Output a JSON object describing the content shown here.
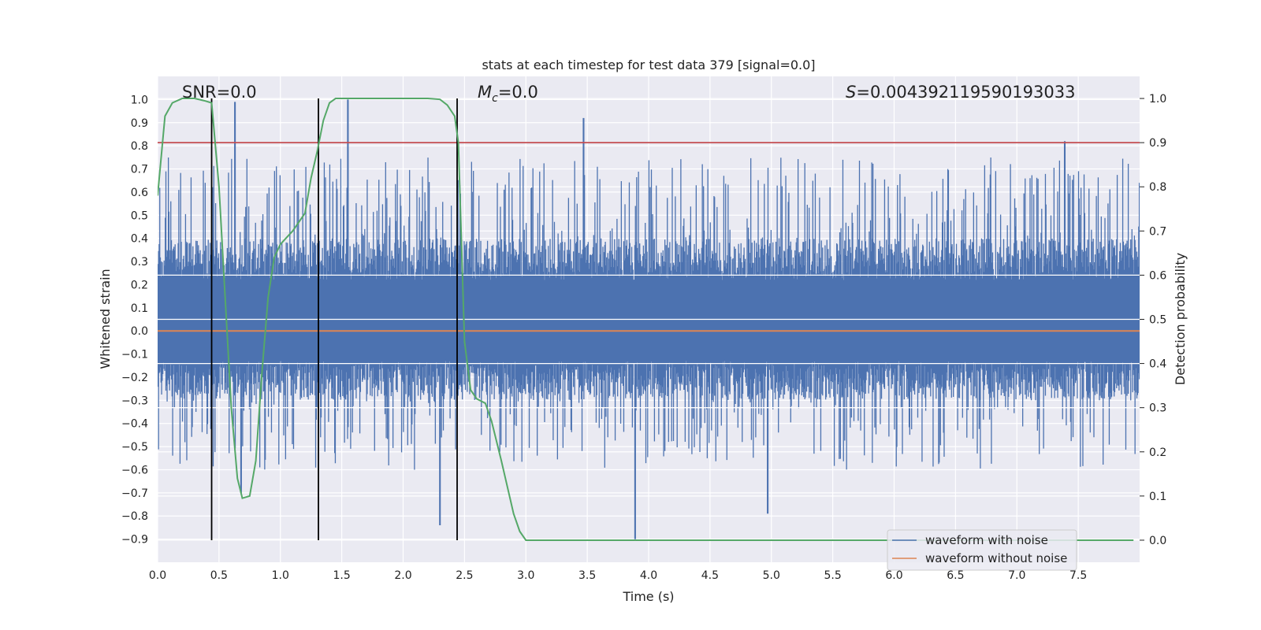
{
  "chart_data": {
    "type": "line",
    "title": "stats at each timestep for test data 379 [signal=0.0]",
    "xlabel": "Time (s)",
    "ylabel": "Whitened strain",
    "y2label": "Detection probability",
    "xlim": [
      0.0,
      8.0
    ],
    "ylim": [
      -1.0,
      1.1
    ],
    "y2lim": [
      -0.05,
      1.05
    ],
    "grid": true,
    "xticks": [
      "0.0",
      "0.5",
      "1.0",
      "1.5",
      "2.0",
      "2.5",
      "3.0",
      "3.5",
      "4.0",
      "4.5",
      "5.0",
      "5.5",
      "6.0",
      "6.5",
      "7.0",
      "7.5"
    ],
    "yticks": [
      "1.0",
      "0.9",
      "0.8",
      "0.7",
      "0.6",
      "0.5",
      "0.4",
      "0.3",
      "0.2",
      "0.1",
      "0.0",
      "−0.1",
      "−0.2",
      "−0.3",
      "−0.4",
      "−0.5",
      "−0.6",
      "−0.7",
      "−0.8",
      "−0.9"
    ],
    "y2ticks": [
      "1.0",
      "0.9",
      "0.8",
      "0.7",
      "0.6",
      "0.5",
      "0.4",
      "0.3",
      "0.2",
      "0.1",
      "0.0"
    ],
    "annotations": {
      "snr": "SNR=0.0",
      "mc_symbol": "M",
      "mc_sub": "c",
      "mc_value": "=0.0",
      "s_symbol": "S",
      "s_value": "=0.004392119590193033"
    },
    "legend": {
      "position": "lower-right",
      "entries": [
        "waveform with noise",
        "waveform without noise"
      ]
    },
    "colors": {
      "noisy": "#4c72b0",
      "clean": "#dd8452",
      "probability": "#55a868",
      "threshold": "#c44e52",
      "markers": "#000000",
      "axes_bg": "#eaeaf2"
    },
    "threshold_probability": 0.9,
    "marker_times": [
      0.44,
      1.31,
      2.44
    ],
    "noise_envelope": {
      "seed": 379,
      "n_samples": 1600,
      "body_max": 0.4,
      "body_min": -0.3,
      "peaks": [
        {
          "t": 0.63,
          "value": 0.99
        },
        {
          "t": 1.55,
          "value": 1.0
        },
        {
          "t": 3.47,
          "value": 0.92
        },
        {
          "t": 7.39,
          "value": 0.82
        },
        {
          "t": 3.89,
          "value": -0.9
        },
        {
          "t": 2.3,
          "value": -0.84
        },
        {
          "t": 4.97,
          "value": -0.79
        },
        {
          "t": 0.68,
          "value": -0.7
        }
      ]
    },
    "series": [
      {
        "name": "waveform without noise",
        "axis": "left",
        "x": [
          0.0,
          8.0
        ],
        "y": [
          0.0,
          0.0
        ]
      },
      {
        "name": "Detection probability",
        "axis": "right",
        "x": [
          0.0,
          0.06,
          0.12,
          0.2,
          0.3,
          0.38,
          0.44,
          0.5,
          0.55,
          0.6,
          0.65,
          0.69,
          0.75,
          0.8,
          0.85,
          0.9,
          0.95,
          1.0,
          1.1,
          1.2,
          1.25,
          1.3,
          1.35,
          1.4,
          1.45,
          1.5,
          1.7,
          2.0,
          2.2,
          2.3,
          2.36,
          2.42,
          2.45,
          2.5,
          2.55,
          2.6,
          2.67,
          2.72,
          2.8,
          2.9,
          2.95,
          3.0,
          3.5,
          4.0,
          5.0,
          6.0,
          7.0,
          7.95
        ],
        "y": [
          0.78,
          0.96,
          0.99,
          1.0,
          1.0,
          0.995,
          0.99,
          0.8,
          0.55,
          0.3,
          0.14,
          0.095,
          0.1,
          0.18,
          0.38,
          0.55,
          0.64,
          0.67,
          0.7,
          0.74,
          0.82,
          0.88,
          0.95,
          0.99,
          1.0,
          1.0,
          1.0,
          1.0,
          1.0,
          0.998,
          0.985,
          0.96,
          0.9,
          0.45,
          0.34,
          0.32,
          0.31,
          0.27,
          0.18,
          0.06,
          0.02,
          0.0,
          0.0,
          0.0,
          0.0,
          0.0,
          0.0,
          0.0
        ]
      }
    ]
  }
}
